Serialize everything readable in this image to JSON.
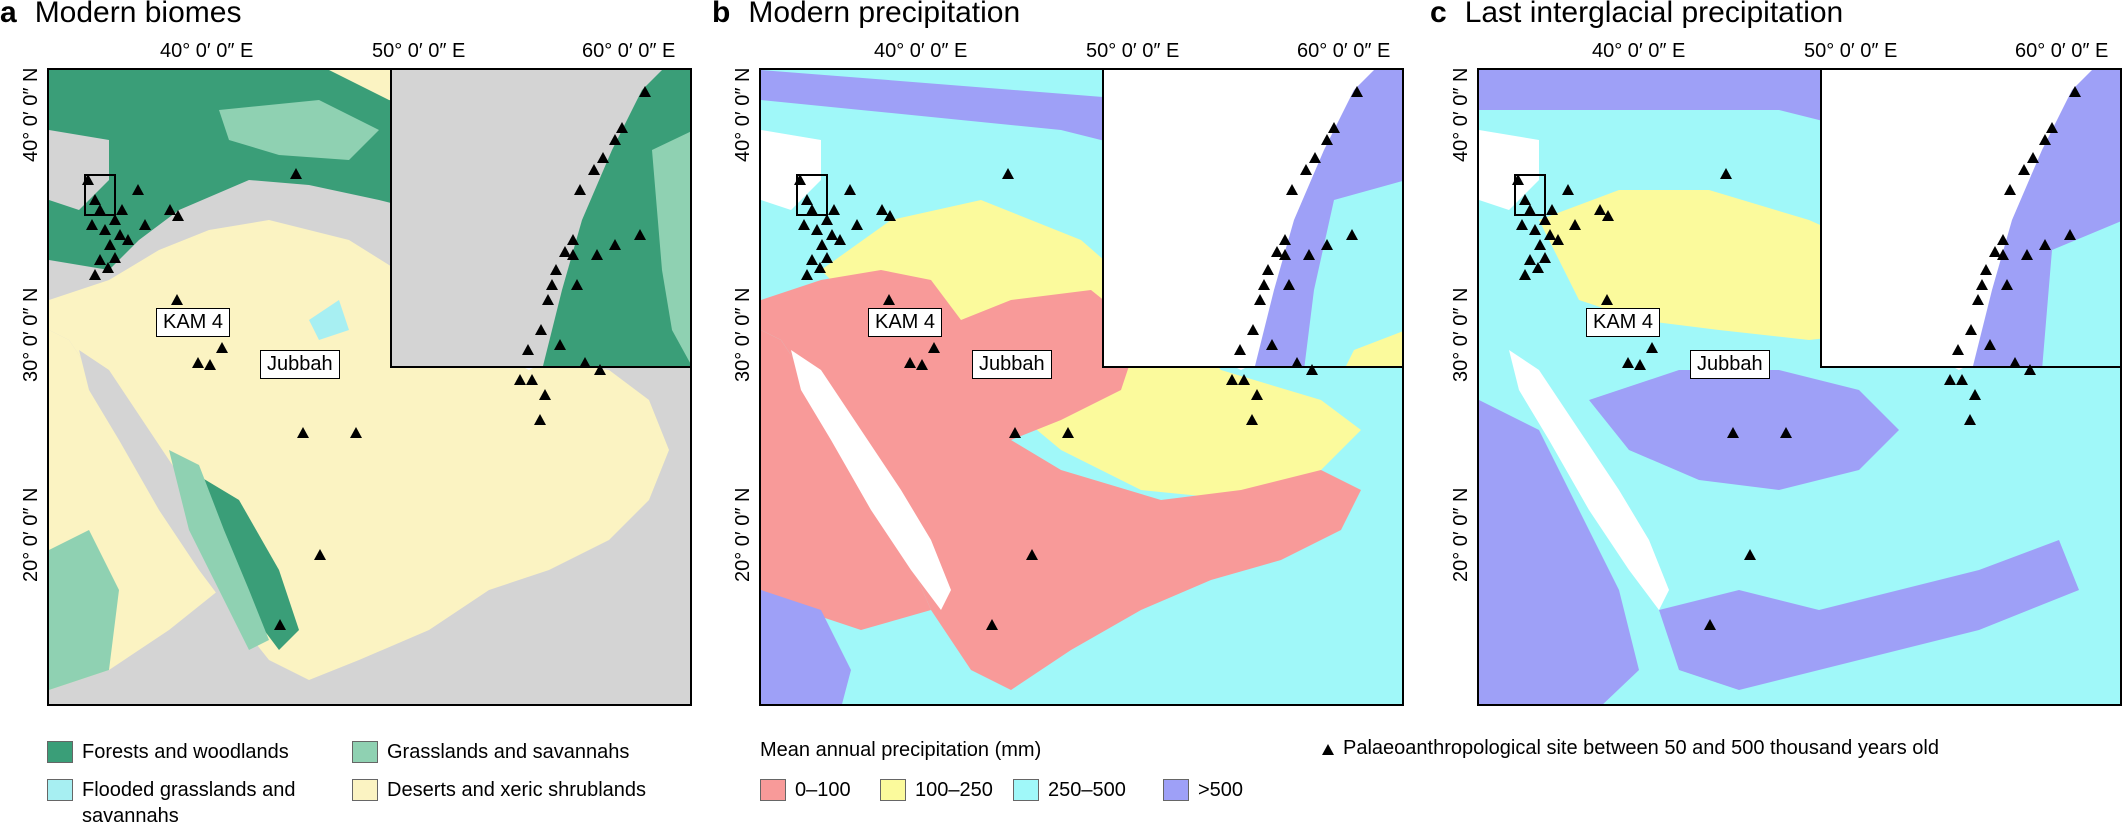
{
  "panels": [
    {
      "letter": "a",
      "title": "Modern biomes"
    },
    {
      "letter": "b",
      "title": "Modern precipitation"
    },
    {
      "letter": "c",
      "title": "Last interglacial precipitation"
    }
  ],
  "lon_ticks": [
    "40° 0′ 0″ E",
    "50° 0′ 0″ E",
    "60° 0′ 0″ E"
  ],
  "lat_ticks": [
    "40° 0′ 0″ N",
    "30° 0′ 0″ N",
    "20° 0′ 0″ N"
  ],
  "callouts": {
    "kam4": "KAM 4",
    "jubbah": "Jubbah"
  },
  "colors": {
    "forest": "#3a9e78",
    "grass": "#8fd1b2",
    "flooded": "#a7eff2",
    "desert": "#fbf3c2",
    "relief": "#d4d4d4",
    "p0_100": "#f89a99",
    "p100_250": "#fbfa9c",
    "p250_500": "#a0f8f9",
    "p500": "#9ea0f7",
    "water": "#ffffff"
  },
  "legend": {
    "biomes": [
      {
        "label": "Forests and woodlands",
        "color": "#3a9e78"
      },
      {
        "label": "Grasslands and savannahs",
        "color": "#8fd1b2"
      },
      {
        "label": "Flooded grasslands and savannahs",
        "color": "#a7eff2"
      },
      {
        "label": "Deserts and xeric shrublands",
        "color": "#fbf3c2"
      }
    ],
    "precip_title": "Mean annual precipitation (mm)",
    "precip": [
      {
        "label": "0–100",
        "color": "#f89a99"
      },
      {
        "label": "100–250",
        "color": "#fbfa9c"
      },
      {
        "label": "250–500",
        "color": "#a0f8f9"
      },
      {
        "label": ">500",
        "color": "#9ea0f7"
      }
    ],
    "site_label": "Palaeoanthropological site between 50 and 500 thousand years old"
  }
}
